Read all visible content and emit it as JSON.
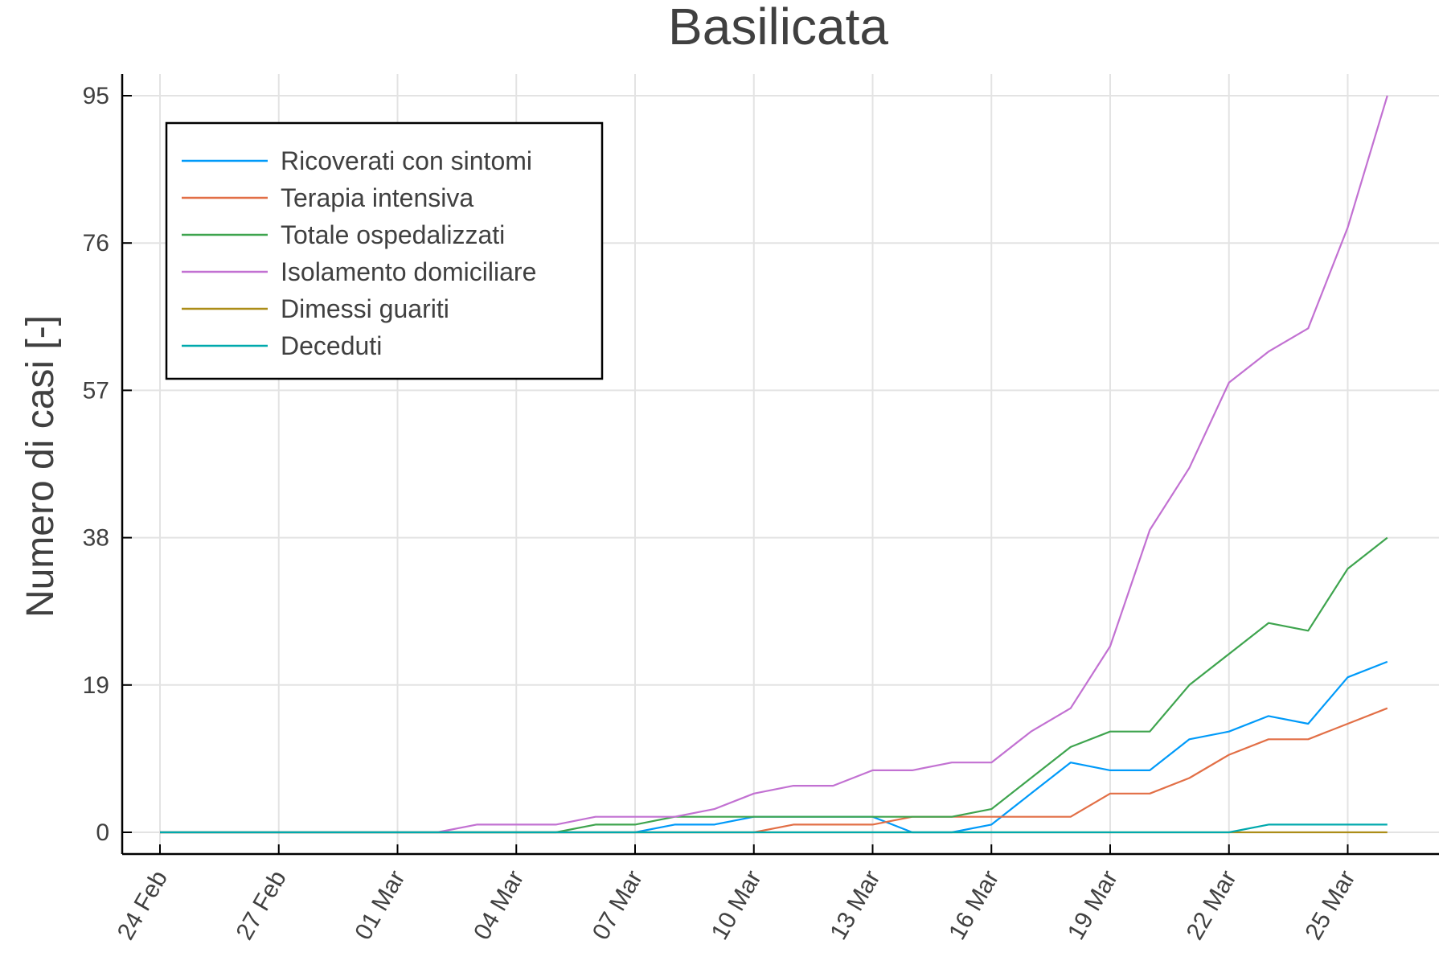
{
  "chart_data": {
    "type": "line",
    "title": "Basilicata",
    "xlabel": "",
    "ylabel": "Numero di casi [-]",
    "x": [
      "24 Feb",
      "25 Feb",
      "26 Feb",
      "27 Feb",
      "28 Feb",
      "29 Feb",
      "01 Mar",
      "02 Mar",
      "03 Mar",
      "04 Mar",
      "05 Mar",
      "06 Mar",
      "07 Mar",
      "08 Mar",
      "09 Mar",
      "10 Mar",
      "11 Mar",
      "12 Mar",
      "13 Mar",
      "14 Mar",
      "15 Mar",
      "16 Mar",
      "17 Mar",
      "18 Mar",
      "19 Mar",
      "20 Mar",
      "21 Mar",
      "22 Mar",
      "23 Mar",
      "24 Mar",
      "25 Mar",
      "26 Mar"
    ],
    "x_tick_labels": [
      "24 Feb",
      "27 Feb",
      "01 Mar",
      "04 Mar",
      "07 Mar",
      "10 Mar",
      "13 Mar",
      "16 Mar",
      "19 Mar",
      "22 Mar",
      "25 Mar"
    ],
    "y_ticks": [
      0,
      19,
      38,
      57,
      76,
      95
    ],
    "ylim": [
      -2.8,
      97.8
    ],
    "grid": true,
    "legend_position": "top-left",
    "series": [
      {
        "name": "Ricoverati con sintomi",
        "color": "#009af9",
        "values": [
          0,
          0,
          0,
          0,
          0,
          0,
          0,
          0,
          0,
          0,
          0,
          0,
          0,
          1,
          1,
          2,
          2,
          2,
          2,
          0,
          0,
          1,
          5,
          9,
          8,
          8,
          12,
          13,
          15,
          14,
          20,
          22
        ]
      },
      {
        "name": "Terapia intensiva",
        "color": "#e26f46",
        "values": [
          0,
          0,
          0,
          0,
          0,
          0,
          0,
          0,
          0,
          0,
          0,
          0,
          0,
          0,
          0,
          0,
          1,
          1,
          1,
          2,
          2,
          2,
          2,
          2,
          5,
          5,
          7,
          10,
          12,
          12,
          14,
          16
        ]
      },
      {
        "name": "Totale ospedalizzati",
        "color": "#3ea44e",
        "values": [
          0,
          0,
          0,
          0,
          0,
          0,
          0,
          0,
          0,
          0,
          0,
          1,
          1,
          2,
          2,
          2,
          2,
          2,
          2,
          2,
          2,
          3,
          7,
          11,
          13,
          13,
          19,
          23,
          27,
          26,
          34,
          38
        ]
      },
      {
        "name": "Isolamento domiciliare",
        "color": "#c271d2",
        "values": [
          0,
          0,
          0,
          0,
          0,
          0,
          0,
          0,
          1,
          1,
          1,
          2,
          2,
          2,
          3,
          5,
          6,
          6,
          8,
          8,
          9,
          9,
          13,
          16,
          24,
          39,
          47,
          58,
          62,
          65,
          78,
          95
        ]
      },
      {
        "name": "Dimessi guariti",
        "color": "#ac8d18",
        "values": [
          0,
          0,
          0,
          0,
          0,
          0,
          0,
          0,
          0,
          0,
          0,
          0,
          0,
          0,
          0,
          0,
          0,
          0,
          0,
          0,
          0,
          0,
          0,
          0,
          0,
          0,
          0,
          0,
          0,
          0,
          0,
          0
        ]
      },
      {
        "name": "Deceduti",
        "color": "#00a9ad",
        "values": [
          0,
          0,
          0,
          0,
          0,
          0,
          0,
          0,
          0,
          0,
          0,
          0,
          0,
          0,
          0,
          0,
          0,
          0,
          0,
          0,
          0,
          0,
          0,
          0,
          0,
          0,
          0,
          0,
          1,
          1,
          1,
          1
        ]
      }
    ]
  }
}
